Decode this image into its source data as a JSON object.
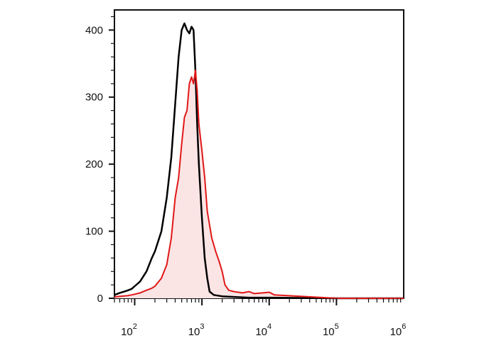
{
  "chart_data": {
    "type": "area",
    "title": "",
    "xlabel": "",
    "ylabel": "",
    "x_scale": "log",
    "xlim": [
      50,
      1000000
    ],
    "ylim": [
      0,
      430
    ],
    "grid": false,
    "legend": "none",
    "x_ticks": [
      {
        "base": "10",
        "exp": "2",
        "value": 100
      },
      {
        "base": "10",
        "exp": "3",
        "value": 1000
      },
      {
        "base": "10",
        "exp": "4",
        "value": 10000
      },
      {
        "base": "10",
        "exp": "5",
        "value": 100000
      },
      {
        "base": "10",
        "exp": "6",
        "value": 1000000
      }
    ],
    "y_ticks": [
      {
        "label": "0",
        "value": 0
      },
      {
        "label": "100",
        "value": 100
      },
      {
        "label": "200",
        "value": 200
      },
      {
        "label": "300",
        "value": 300
      },
      {
        "label": "400",
        "value": 400
      }
    ],
    "series": [
      {
        "color": "#000000",
        "fill": "none",
        "x": [
          50,
          60,
          70,
          80,
          90,
          100,
          120,
          150,
          180,
          200,
          250,
          300,
          350,
          400,
          450,
          500,
          550,
          600,
          650,
          700,
          750,
          800,
          850,
          900,
          1000,
          1100,
          1200,
          1300,
          1500,
          2000,
          3000,
          5000,
          10000,
          100000,
          1000000
        ],
        "y": [
          5,
          8,
          10,
          12,
          14,
          18,
          25,
          40,
          60,
          70,
          100,
          150,
          210,
          290,
          360,
          400,
          410,
          400,
          395,
          405,
          400,
          340,
          260,
          200,
          120,
          60,
          30,
          10,
          5,
          3,
          2,
          1,
          1,
          0,
          0
        ]
      },
      {
        "color": "#e01818",
        "fill": "#fbe4e4",
        "x": [
          50,
          60,
          80,
          100,
          120,
          150,
          180,
          200,
          250,
          300,
          350,
          400,
          450,
          500,
          550,
          600,
          650,
          700,
          750,
          800,
          850,
          900,
          1000,
          1100,
          1200,
          1400,
          1600,
          1800,
          2000,
          2200,
          2500,
          3000,
          4000,
          5000,
          6000,
          8000,
          10000,
          12000,
          100000,
          1000000
        ],
        "y": [
          2,
          3,
          4,
          6,
          8,
          12,
          15,
          18,
          30,
          50,
          90,
          150,
          180,
          230,
          270,
          280,
          320,
          330,
          320,
          340,
          310,
          260,
          220,
          180,
          130,
          90,
          70,
          55,
          40,
          20,
          12,
          10,
          8,
          10,
          7,
          8,
          9,
          5,
          0,
          0
        ]
      }
    ]
  }
}
